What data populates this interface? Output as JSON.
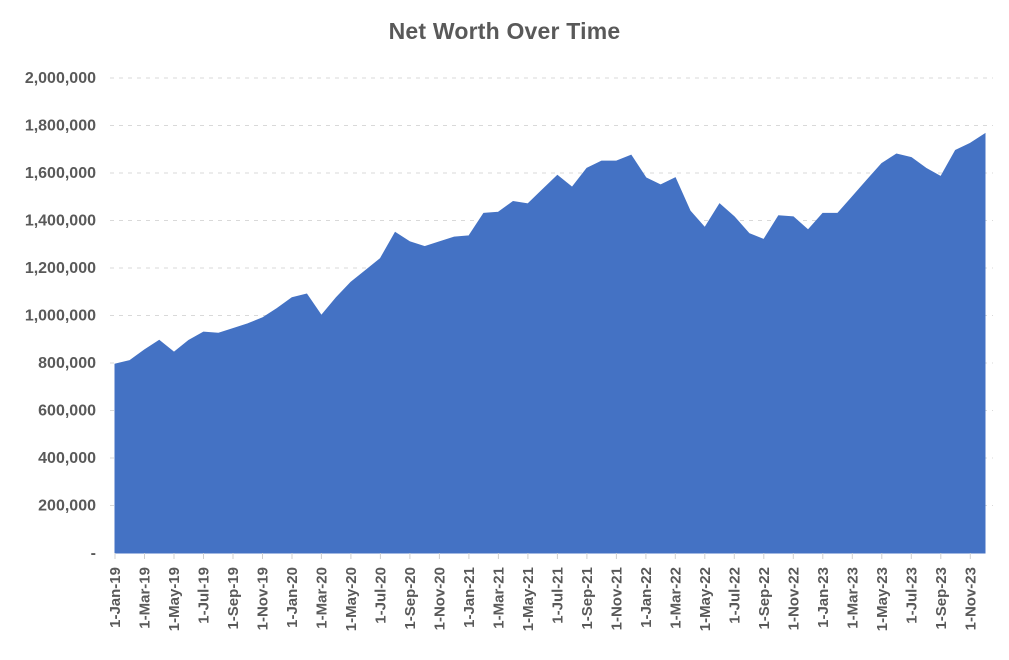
{
  "chart_data": {
    "type": "area",
    "title": "Net Worth Over Time",
    "xlabel": "",
    "ylabel": "",
    "legend": "none",
    "grid": "horizontal-dashed",
    "ylim": [
      0,
      2000000
    ],
    "ytick_step": 200000,
    "ytick_labels": [
      "-",
      "200,000",
      "400,000",
      "600,000",
      "800,000",
      "1,000,000",
      "1,200,000",
      "1,400,000",
      "1,600,000",
      "1,800,000",
      "2,000,000"
    ],
    "xtick_every": 2,
    "categories": [
      "1-Jan-19",
      "1-Feb-19",
      "1-Mar-19",
      "1-Apr-19",
      "1-May-19",
      "1-Jun-19",
      "1-Jul-19",
      "1-Aug-19",
      "1-Sep-19",
      "1-Oct-19",
      "1-Nov-19",
      "1-Dec-19",
      "1-Jan-20",
      "1-Feb-20",
      "1-Mar-20",
      "1-Apr-20",
      "1-May-20",
      "1-Jun-20",
      "1-Jul-20",
      "1-Aug-20",
      "1-Sep-20",
      "1-Oct-20",
      "1-Nov-20",
      "1-Dec-20",
      "1-Jan-21",
      "1-Feb-21",
      "1-Mar-21",
      "1-Apr-21",
      "1-May-21",
      "1-Jun-21",
      "1-Jul-21",
      "1-Aug-21",
      "1-Sep-21",
      "1-Oct-21",
      "1-Nov-21",
      "1-Dec-21",
      "1-Jan-22",
      "1-Feb-22",
      "1-Mar-22",
      "1-Apr-22",
      "1-May-22",
      "1-Jun-22",
      "1-Jul-22",
      "1-Aug-22",
      "1-Sep-22",
      "1-Oct-22",
      "1-Nov-22",
      "1-Dec-22",
      "1-Jan-23",
      "1-Feb-23",
      "1-Mar-23",
      "1-Apr-23",
      "1-May-23",
      "1-Jun-23",
      "1-Jul-23",
      "1-Aug-23",
      "1-Sep-23",
      "1-Oct-23",
      "1-Nov-23",
      "1-Dec-23"
    ],
    "values": [
      795000,
      810000,
      855000,
      895000,
      845000,
      895000,
      930000,
      925000,
      945000,
      965000,
      990000,
      1030000,
      1075000,
      1090000,
      1000000,
      1075000,
      1140000,
      1190000,
      1240000,
      1350000,
      1310000,
      1290000,
      1310000,
      1330000,
      1335000,
      1430000,
      1435000,
      1480000,
      1470000,
      1530000,
      1590000,
      1540000,
      1620000,
      1650000,
      1650000,
      1675000,
      1580000,
      1550000,
      1580000,
      1440000,
      1370000,
      1470000,
      1415000,
      1345000,
      1320000,
      1420000,
      1415000,
      1360000,
      1430000,
      1430000,
      1500000,
      1570000,
      1640000,
      1680000,
      1665000,
      1620000,
      1585000,
      1695000,
      1725000,
      1765000
    ],
    "colors": {
      "area_fill": "#4472C4",
      "grid_line": "#D9D9D9",
      "axis_tick": "#D0D0D0",
      "tick_label": "#595959",
      "title": "#595959",
      "background": "#FFFFFF"
    }
  }
}
